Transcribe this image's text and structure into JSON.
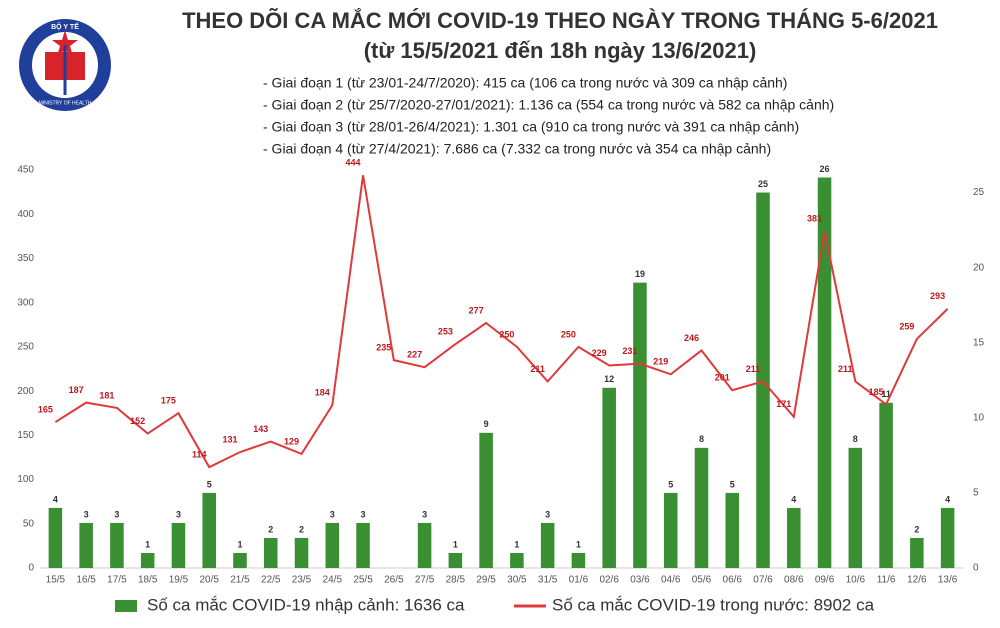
{
  "header": {
    "logo_top": "BỘ Y TẾ",
    "logo_bottom": "MINISTRY OF HEALTH"
  },
  "chart_data": {
    "type": "combo",
    "title": "THEO DÕI CA MẮC MỚI COVID-19 THEO NGÀY TRONG THÁNG 5-6/2021",
    "subtitle": "(từ 15/5/2021 đến 18h ngày 13/6/2021)",
    "notes": [
      "- Giai đoạn 1 (từ 23/01-24/7/2020): 415 ca (106 ca trong nước và 309 ca nhập cảnh)",
      "- Giai đoạn 2 (từ 25/7/2020-27/01/2021): 1.136 ca (554 ca trong nước và 582 ca nhập cảnh)",
      "- Giai đoạn 3 (từ 28/01-26/4/2021): 1.301 ca (910 ca trong nước và 391 ca nhập cảnh)",
      "- Giai đoạn 4 (từ 27/4/2021): 7.686 ca (7.332 ca trong nước và 354 ca nhập cảnh)"
    ],
    "categories": [
      "15/5",
      "16/5",
      "17/5",
      "18/5",
      "19/5",
      "20/5",
      "21/5",
      "22/5",
      "23/5",
      "24/5",
      "25/5",
      "26/5",
      "27/5",
      "28/5",
      "29/5",
      "30/5",
      "31/5",
      "01/6",
      "02/6",
      "03/6",
      "04/6",
      "05/6",
      "06/6",
      "07/6",
      "08/6",
      "09/6",
      "10/6",
      "11/6",
      "12/6",
      "13/6"
    ],
    "series": [
      {
        "name": "Số ca mắc COVID-19 nhập cảnh: 1636 ca",
        "type": "bar",
        "axis": "y2",
        "color": "#3a8f32",
        "values": [
          4,
          3,
          3,
          1,
          3,
          5,
          1,
          2,
          2,
          3,
          3,
          null,
          3,
          1,
          9,
          1,
          3,
          1,
          12,
          19,
          5,
          8,
          5,
          25,
          4,
          26,
          8,
          11,
          2,
          4
        ]
      },
      {
        "name": "Số ca mắc COVID-19 trong nước: 8902 ca",
        "type": "line",
        "color": "#e0393b",
        "values": [
          165,
          187,
          181,
          152,
          175,
          114,
          131,
          143,
          129,
          184,
          444,
          235,
          227,
          253,
          277,
          250,
          211,
          250,
          229,
          231,
          219,
          246,
          201,
          211,
          171,
          381,
          211,
          185,
          259,
          293
        ]
      }
    ],
    "ylim": [
      0,
      450
    ],
    "yticks": [
      0,
      50,
      100,
      150,
      200,
      250,
      300,
      350,
      400,
      450
    ],
    "y2lim": [
      0,
      26.5
    ],
    "y2ticks": [
      0,
      5,
      10,
      15,
      20,
      25
    ],
    "grid": false
  }
}
